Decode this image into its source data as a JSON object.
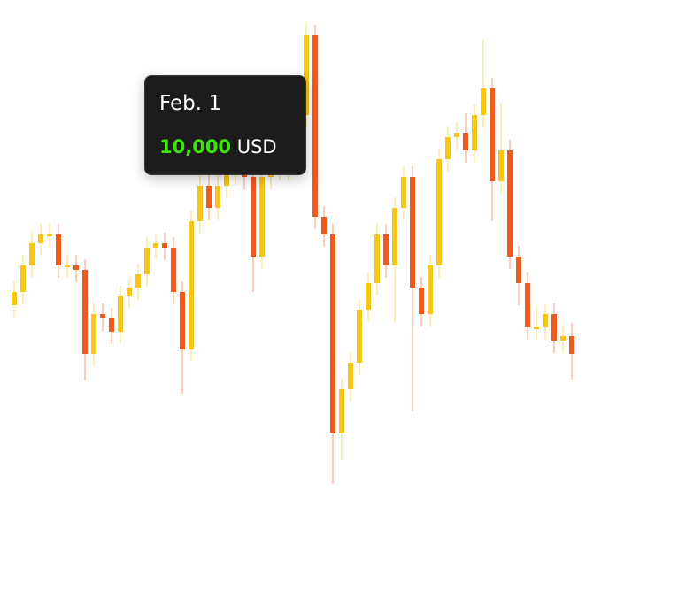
{
  "chart_data": {
    "type": "candlestick",
    "open": [
      340,
      355,
      385,
      410,
      420,
      420,
      385,
      385,
      380,
      285,
      330,
      325,
      310,
      350,
      360,
      375,
      405,
      410,
      405,
      355,
      290,
      435,
      475,
      450,
      475,
      490,
      495,
      485,
      395,
      485,
      495,
      495,
      500,
      555,
      645,
      440,
      420,
      195,
      245,
      275,
      335,
      365,
      420,
      385,
      450,
      485,
      360,
      330,
      385,
      505,
      530,
      535,
      515,
      555,
      585,
      480,
      515,
      395,
      365,
      315,
      315,
      330,
      300,
      305
    ],
    "high": [
      367,
      397,
      422,
      432,
      432,
      432,
      397,
      397,
      392,
      342,
      342,
      337,
      362,
      372,
      387,
      417,
      422,
      422,
      417,
      367,
      447,
      487,
      487,
      487,
      502,
      507,
      507,
      497,
      497,
      507,
      507,
      512,
      567,
      660,
      657,
      452,
      432,
      257,
      287,
      347,
      377,
      432,
      432,
      462,
      497,
      497,
      372,
      397,
      517,
      542,
      547,
      557,
      567,
      640,
      597,
      570,
      527,
      407,
      377,
      340,
      342,
      342,
      317,
      320
    ],
    "low": [
      326,
      341,
      371,
      396,
      406,
      371,
      371,
      366,
      255,
      271,
      311,
      296,
      296,
      336,
      346,
      361,
      391,
      391,
      341,
      240,
      276,
      421,
      436,
      436,
      461,
      476,
      471,
      355,
      381,
      471,
      481,
      481,
      486,
      541,
      426,
      406,
      138,
      165,
      231,
      261,
      321,
      351,
      371,
      320,
      436,
      220,
      316,
      316,
      371,
      491,
      516,
      501,
      501,
      541,
      435,
      466,
      381,
      340,
      301,
      301,
      301,
      286,
      286,
      256
    ],
    "close": [
      355,
      385,
      410,
      420,
      420,
      385,
      385,
      380,
      285,
      330,
      325,
      310,
      350,
      360,
      375,
      405,
      410,
      405,
      355,
      290,
      435,
      475,
      450,
      475,
      490,
      495,
      485,
      395,
      485,
      495,
      495,
      500,
      555,
      645,
      440,
      420,
      195,
      245,
      275,
      335,
      365,
      420,
      385,
      450,
      485,
      360,
      330,
      385,
      505,
      530,
      535,
      515,
      555,
      585,
      480,
      515,
      395,
      365,
      315,
      315,
      330,
      300,
      305,
      285
    ],
    "ylim": [
      0,
      685
    ],
    "up_color": "#f7c514",
    "down_color": "#ee5a1e"
  },
  "tooltip": {
    "date": "Feb. 1",
    "value": "10,000",
    "unit": "USD"
  }
}
